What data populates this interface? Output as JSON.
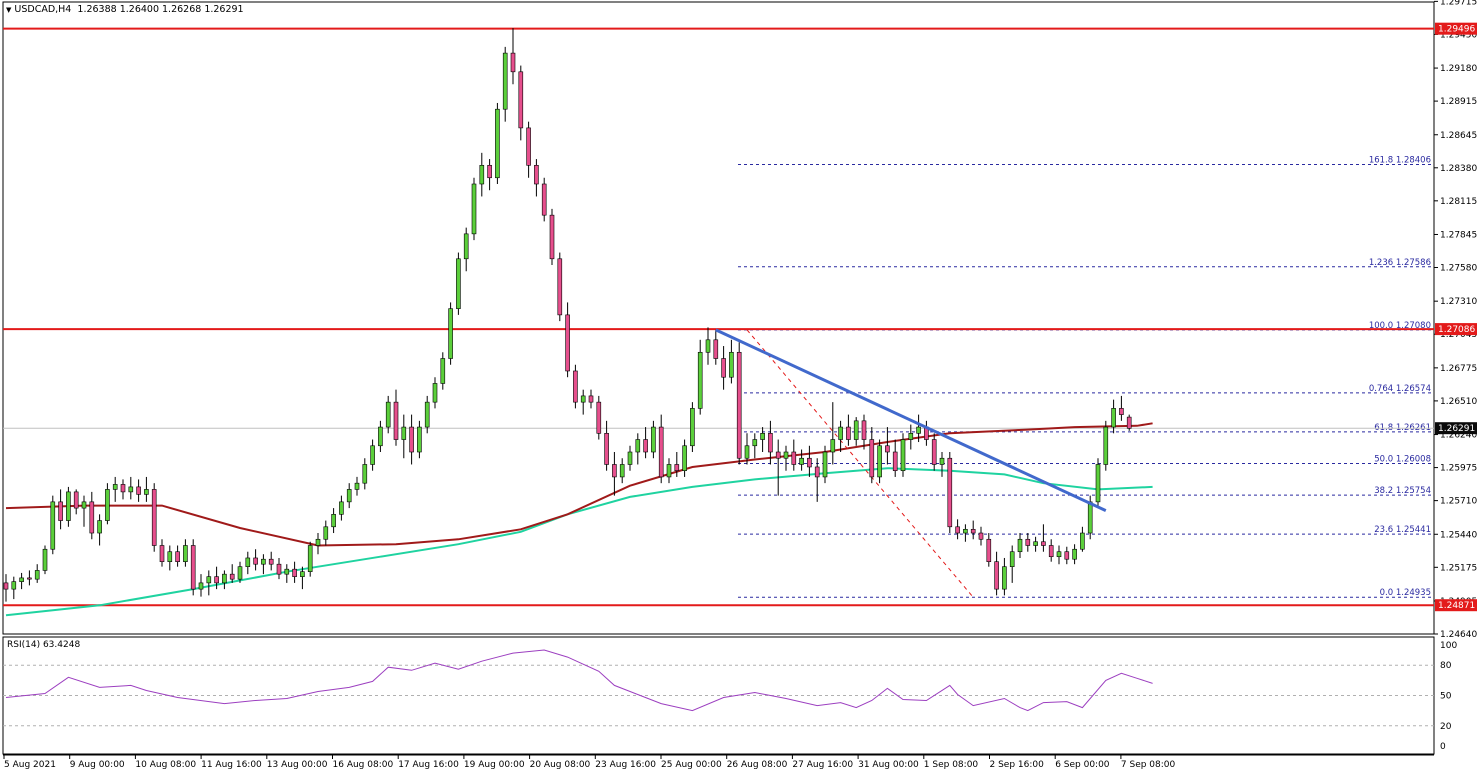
{
  "header": {
    "symbol": "USDCAD,H4",
    "ohlc": "1.26388 1.26400 1.26268 1.26291"
  },
  "rsi_header": "RSI(14) 63.4248",
  "chart_data": {
    "type": "candlestick",
    "symbol": "USDCAD",
    "timeframe": "H4",
    "ylim": [
      1.2464,
      1.2971
    ],
    "price_ticks": [
      "1.29715",
      "1.29450",
      "1.29180",
      "1.28915",
      "1.28645",
      "1.28380",
      "1.28115",
      "1.27845",
      "1.27580",
      "1.27310",
      "1.27045",
      "1.26775",
      "1.26510",
      "1.26240",
      "1.25975",
      "1.25710",
      "1.25440",
      "1.25175",
      "1.24905",
      "1.24640"
    ],
    "time_labels": [
      "5 Aug 2021",
      "9 Aug 00:00",
      "10 Aug 08:00",
      "11 Aug 16:00",
      "13 Aug 00:00",
      "16 Aug 08:00",
      "17 Aug 16:00",
      "19 Aug 00:00",
      "20 Aug 08:00",
      "23 Aug 16:00",
      "25 Aug 00:00",
      "26 Aug 08:00",
      "27 Aug 16:00",
      "31 Aug 00:00",
      "1 Sep 08:00",
      "2 Sep 16:00",
      "6 Sep 00:00",
      "7 Sep 08:00"
    ],
    "current_price": "1.26291",
    "levels": [
      {
        "price": 1.29496,
        "label": "1.29496"
      },
      {
        "price": 1.27086,
        "label": "1.27086"
      },
      {
        "price": 1.24871,
        "label": "1.24871"
      }
    ],
    "fib_levels": [
      {
        "price": 1.28406,
        "label": "161.8 1.28406"
      },
      {
        "price": 1.27586,
        "label": "1.236 1.27586"
      },
      {
        "price": 1.2708,
        "label": "100.0 1.27080"
      },
      {
        "price": 1.26574,
        "label": "0.764 1.26574"
      },
      {
        "price": 1.26261,
        "label": "61.8 1.26261"
      },
      {
        "price": 1.26008,
        "label": "50.0 1.26008"
      },
      {
        "price": 1.25754,
        "label": "38.2 1.25754"
      },
      {
        "price": 1.25441,
        "label": "23.6 1.25441"
      },
      {
        "price": 1.24935,
        "label": "0.0 1.24935"
      }
    ],
    "candles": [
      [
        1.2505,
        1.2512,
        1.249,
        1.25
      ],
      [
        1.25,
        1.251,
        1.2492,
        1.2506
      ],
      [
        1.2506,
        1.2513,
        1.25,
        1.2509
      ],
      [
        1.2509,
        1.2515,
        1.2503,
        1.2508
      ],
      [
        1.2508,
        1.252,
        1.2505,
        1.2515
      ],
      [
        1.2515,
        1.2535,
        1.2512,
        1.2532
      ],
      [
        1.2532,
        1.2575,
        1.2528,
        1.257
      ],
      [
        1.257,
        1.258,
        1.2548,
        1.2555
      ],
      [
        1.2555,
        1.2582,
        1.255,
        1.2578
      ],
      [
        1.2578,
        1.258,
        1.256,
        1.2565
      ],
      [
        1.2565,
        1.2575,
        1.255,
        1.257
      ],
      [
        1.257,
        1.2578,
        1.254,
        1.2545
      ],
      [
        1.2545,
        1.256,
        1.2535,
        1.2555
      ],
      [
        1.2555,
        1.2585,
        1.2552,
        1.258
      ],
      [
        1.258,
        1.259,
        1.257,
        1.2584
      ],
      [
        1.2584,
        1.2588,
        1.2572,
        1.2578
      ],
      [
        1.2578,
        1.259,
        1.2572,
        1.2582
      ],
      [
        1.2582,
        1.2588,
        1.257,
        1.2576
      ],
      [
        1.2576,
        1.259,
        1.257,
        1.258
      ],
      [
        1.258,
        1.2585,
        1.253,
        1.2535
      ],
      [
        1.2535,
        1.254,
        1.2518,
        1.2522
      ],
      [
        1.2522,
        1.2535,
        1.2515,
        1.253
      ],
      [
        1.253,
        1.2535,
        1.2518,
        1.2522
      ],
      [
        1.2522,
        1.254,
        1.2518,
        1.2535
      ],
      [
        1.2535,
        1.254,
        1.2495,
        1.25
      ],
      [
        1.25,
        1.2512,
        1.2494,
        1.2505
      ],
      [
        1.2505,
        1.2515,
        1.2495,
        1.251
      ],
      [
        1.251,
        1.2518,
        1.25,
        1.2505
      ],
      [
        1.2505,
        1.2515,
        1.25,
        1.2512
      ],
      [
        1.2512,
        1.252,
        1.2505,
        1.2508
      ],
      [
        1.2508,
        1.2522,
        1.2505,
        1.2518
      ],
      [
        1.2518,
        1.253,
        1.2512,
        1.2525
      ],
      [
        1.2525,
        1.2532,
        1.2515,
        1.252
      ],
      [
        1.252,
        1.2528,
        1.2512,
        1.2524
      ],
      [
        1.2524,
        1.253,
        1.2515,
        1.252
      ],
      [
        1.252,
        1.2525,
        1.2508,
        1.2512
      ],
      [
        1.2512,
        1.252,
        1.2505,
        1.2516
      ],
      [
        1.2516,
        1.2522,
        1.2505,
        1.251
      ],
      [
        1.251,
        1.2518,
        1.25,
        1.2514
      ],
      [
        1.2514,
        1.2538,
        1.251,
        1.2535
      ],
      [
        1.2535,
        1.2545,
        1.2528,
        1.254
      ],
      [
        1.254,
        1.2555,
        1.2535,
        1.255
      ],
      [
        1.255,
        1.2565,
        1.2545,
        1.256
      ],
      [
        1.256,
        1.2575,
        1.2555,
        1.257
      ],
      [
        1.257,
        1.2585,
        1.2565,
        1.258
      ],
      [
        1.258,
        1.259,
        1.2575,
        1.2585
      ],
      [
        1.2585,
        1.2605,
        1.258,
        1.26
      ],
      [
        1.26,
        1.262,
        1.2595,
        1.2615
      ],
      [
        1.2615,
        1.2635,
        1.261,
        1.263
      ],
      [
        1.263,
        1.2655,
        1.2625,
        1.265
      ],
      [
        1.265,
        1.266,
        1.2615,
        1.262
      ],
      [
        1.262,
        1.264,
        1.2605,
        1.263
      ],
      [
        1.263,
        1.264,
        1.26,
        1.261
      ],
      [
        1.261,
        1.2635,
        1.2605,
        1.263
      ],
      [
        1.263,
        1.2655,
        1.2625,
        1.265
      ],
      [
        1.265,
        1.267,
        1.2645,
        1.2665
      ],
      [
        1.2665,
        1.269,
        1.266,
        1.2685
      ],
      [
        1.2685,
        1.273,
        1.268,
        1.2725
      ],
      [
        1.2725,
        1.277,
        1.272,
        1.2765
      ],
      [
        1.2765,
        1.279,
        1.2755,
        1.2785
      ],
      [
        1.2785,
        1.283,
        1.278,
        1.2825
      ],
      [
        1.2825,
        1.285,
        1.2815,
        1.284
      ],
      [
        1.284,
        1.2845,
        1.282,
        1.283
      ],
      [
        1.283,
        1.289,
        1.2825,
        1.2885
      ],
      [
        1.2885,
        1.2935,
        1.2875,
        1.293
      ],
      [
        1.293,
        1.295,
        1.2905,
        1.2915
      ],
      [
        1.2915,
        1.292,
        1.286,
        1.287
      ],
      [
        1.287,
        1.2875,
        1.283,
        1.284
      ],
      [
        1.284,
        1.2845,
        1.2815,
        1.2825
      ],
      [
        1.2825,
        1.283,
        1.2795,
        1.28
      ],
      [
        1.28,
        1.2805,
        1.276,
        1.2765
      ],
      [
        1.2765,
        1.277,
        1.2715,
        1.272
      ],
      [
        1.272,
        1.273,
        1.267,
        1.2675
      ],
      [
        1.2675,
        1.268,
        1.2645,
        1.265
      ],
      [
        1.265,
        1.266,
        1.264,
        1.2655
      ],
      [
        1.2655,
        1.266,
        1.2645,
        1.265
      ],
      [
        1.265,
        1.2655,
        1.262,
        1.2625
      ],
      [
        1.2625,
        1.2635,
        1.2595,
        1.26
      ],
      [
        1.26,
        1.261,
        1.2575,
        1.259
      ],
      [
        1.259,
        1.2605,
        1.2585,
        1.26
      ],
      [
        1.26,
        1.2615,
        1.2595,
        1.261
      ],
      [
        1.261,
        1.2625,
        1.26,
        1.262
      ],
      [
        1.262,
        1.263,
        1.2605,
        1.261
      ],
      [
        1.261,
        1.2635,
        1.2605,
        1.263
      ],
      [
        1.263,
        1.264,
        1.2585,
        1.259
      ],
      [
        1.259,
        1.2605,
        1.2585,
        1.26
      ],
      [
        1.26,
        1.261,
        1.259,
        1.2595
      ],
      [
        1.2595,
        1.262,
        1.259,
        1.2615
      ],
      [
        1.2615,
        1.265,
        1.261,
        1.2645
      ],
      [
        1.2645,
        1.27,
        1.264,
        1.269
      ],
      [
        1.269,
        1.271,
        1.268,
        1.27
      ],
      [
        1.27,
        1.2708,
        1.268,
        1.2685
      ],
      [
        1.2685,
        1.2695,
        1.266,
        1.267
      ],
      [
        1.267,
        1.27,
        1.2665,
        1.269
      ],
      [
        1.269,
        1.2698,
        1.26,
        1.2605
      ],
      [
        1.2605,
        1.2625,
        1.26,
        1.2615
      ],
      [
        1.2615,
        1.2625,
        1.2605,
        1.262
      ],
      [
        1.262,
        1.263,
        1.261,
        1.2625
      ],
      [
        1.2625,
        1.2635,
        1.26,
        1.261
      ],
      [
        1.261,
        1.262,
        1.2575,
        1.2605
      ],
      [
        1.2605,
        1.2615,
        1.2595,
        1.261
      ],
      [
        1.261,
        1.262,
        1.2595,
        1.26
      ],
      [
        1.26,
        1.2612,
        1.2595,
        1.2605
      ],
      [
        1.2605,
        1.2615,
        1.259,
        1.2598
      ],
      [
        1.2598,
        1.2605,
        1.257,
        1.259
      ],
      [
        1.259,
        1.2615,
        1.2585,
        1.261
      ],
      [
        1.261,
        1.265,
        1.26,
        1.262
      ],
      [
        1.262,
        1.2635,
        1.261,
        1.263
      ],
      [
        1.263,
        1.264,
        1.2615,
        1.262
      ],
      [
        1.262,
        1.2638,
        1.2615,
        1.2635
      ],
      [
        1.2635,
        1.264,
        1.2612,
        1.262
      ],
      [
        1.262,
        1.263,
        1.2585,
        1.259
      ],
      [
        1.259,
        1.262,
        1.2585,
        1.2615
      ],
      [
        1.2615,
        1.263,
        1.26,
        1.261
      ],
      [
        1.261,
        1.262,
        1.259,
        1.2595
      ],
      [
        1.2595,
        1.2625,
        1.259,
        1.262
      ],
      [
        1.262,
        1.2632,
        1.2612,
        1.2625
      ],
      [
        1.2625,
        1.264,
        1.2618,
        1.263
      ],
      [
        1.263,
        1.2635,
        1.2615,
        1.262
      ],
      [
        1.262,
        1.2625,
        1.2595,
        1.26
      ],
      [
        1.26,
        1.261,
        1.259,
        1.2605
      ],
      [
        1.2605,
        1.261,
        1.2545,
        1.255
      ],
      [
        1.255,
        1.2556,
        1.254,
        1.2545
      ],
      [
        1.2545,
        1.2552,
        1.2538,
        1.2548
      ],
      [
        1.2548,
        1.2555,
        1.254,
        1.2545
      ],
      [
        1.2545,
        1.255,
        1.2535,
        1.254
      ],
      [
        1.254,
        1.2545,
        1.2518,
        1.2522
      ],
      [
        1.2522,
        1.253,
        1.2495,
        1.25
      ],
      [
        1.25,
        1.2525,
        1.2495,
        1.2518
      ],
      [
        1.2518,
        1.2535,
        1.2505,
        1.253
      ],
      [
        1.253,
        1.2545,
        1.2525,
        1.254
      ],
      [
        1.254,
        1.2545,
        1.253,
        1.2535
      ],
      [
        1.2535,
        1.2542,
        1.253,
        1.2538
      ],
      [
        1.2538,
        1.2552,
        1.253,
        1.2535
      ],
      [
        1.2535,
        1.254,
        1.2522,
        1.2526
      ],
      [
        1.2526,
        1.2535,
        1.252,
        1.253
      ],
      [
        1.253,
        1.2534,
        1.252,
        1.2524
      ],
      [
        1.2524,
        1.2536,
        1.252,
        1.2532
      ],
      [
        1.2532,
        1.255,
        1.253,
        1.2545
      ],
      [
        1.2545,
        1.2575,
        1.254,
        1.257
      ],
      [
        1.257,
        1.2605,
        1.2565,
        1.26
      ],
      [
        1.26,
        1.2635,
        1.2595,
        1.263
      ],
      [
        1.263,
        1.2652,
        1.2625,
        1.2645
      ],
      [
        1.2645,
        1.2655,
        1.2635,
        1.264
      ],
      [
        1.2638,
        1.264,
        1.2627,
        1.2629
      ]
    ],
    "ema_a": [
      [
        0,
        1.2565
      ],
      [
        10,
        1.2567
      ],
      [
        20,
        1.2567
      ],
      [
        30,
        1.2549
      ],
      [
        40,
        1.2535
      ],
      [
        50,
        1.2536
      ],
      [
        58,
        1.254
      ],
      [
        66,
        1.2548
      ],
      [
        72,
        1.256
      ],
      [
        80,
        1.2583
      ],
      [
        88,
        1.2598
      ],
      [
        96,
        1.2604
      ],
      [
        105,
        1.261
      ],
      [
        113,
        1.2618
      ],
      [
        121,
        1.2625
      ],
      [
        131,
        1.2628
      ],
      [
        137,
        1.263
      ],
      [
        145,
        1.2631
      ],
      [
        147,
        1.2633
      ]
    ],
    "ema_b": [
      [
        0,
        1.2479
      ],
      [
        12,
        1.2487
      ],
      [
        24,
        1.25
      ],
      [
        36,
        1.2514
      ],
      [
        48,
        1.2526
      ],
      [
        58,
        1.2536
      ],
      [
        66,
        1.2546
      ],
      [
        72,
        1.256
      ],
      [
        80,
        1.2574
      ],
      [
        88,
        1.2582
      ],
      [
        96,
        1.2588
      ],
      [
        105,
        1.2593
      ],
      [
        113,
        1.2597
      ],
      [
        121,
        1.2595
      ],
      [
        128,
        1.2592
      ],
      [
        133,
        1.2585
      ],
      [
        140,
        1.258
      ],
      [
        147,
        1.2582
      ]
    ],
    "trendline": [
      [
        1.2708,
        91
      ],
      [
        1.2563,
        141
      ]
    ],
    "fib_anchor": [
      [
        1.2708,
        95
      ],
      [
        1.24935,
        124
      ]
    ],
    "rsi": {
      "value": "63.4248",
      "ticks": [
        "100",
        "80",
        "50",
        "20",
        "0"
      ],
      "levels": [
        80,
        50,
        20
      ],
      "points": [
        [
          0,
          48
        ],
        [
          5,
          52
        ],
        [
          8,
          68
        ],
        [
          12,
          58
        ],
        [
          16,
          60
        ],
        [
          18,
          55
        ],
        [
          22,
          48
        ],
        [
          28,
          42
        ],
        [
          32,
          45
        ],
        [
          36,
          47
        ],
        [
          40,
          54
        ],
        [
          44,
          58
        ],
        [
          47,
          64
        ],
        [
          49,
          78
        ],
        [
          52,
          75
        ],
        [
          55,
          82
        ],
        [
          58,
          76
        ],
        [
          61,
          84
        ],
        [
          65,
          92
        ],
        [
          69,
          95
        ],
        [
          72,
          88
        ],
        [
          76,
          74
        ],
        [
          78,
          60
        ],
        [
          84,
          42
        ],
        [
          88,
          35
        ],
        [
          92,
          48
        ],
        [
          96,
          53
        ],
        [
          100,
          47
        ],
        [
          104,
          40
        ],
        [
          107,
          43
        ],
        [
          109,
          38
        ],
        [
          111,
          45
        ],
        [
          113,
          57
        ],
        [
          115,
          46
        ],
        [
          118,
          45
        ],
        [
          121,
          60
        ],
        [
          122,
          51
        ],
        [
          124,
          40
        ],
        [
          128,
          47
        ],
        [
          130,
          38
        ],
        [
          131,
          35
        ],
        [
          133,
          43
        ],
        [
          136,
          44
        ],
        [
          138,
          38
        ],
        [
          141,
          65
        ],
        [
          143,
          72
        ],
        [
          145,
          67
        ],
        [
          147,
          62
        ]
      ]
    }
  },
  "colors": {
    "bull": "#5bcf3b",
    "bear": "#e64f8d",
    "level": "#e31a1a",
    "ema_a": "#a01a1a",
    "ema_b": "#1fd3a0",
    "trendline": "#4169cc",
    "fib": "#2a2aa0",
    "rsi": "#9c3fc0",
    "current_label_bg": "#0a0a0a"
  }
}
